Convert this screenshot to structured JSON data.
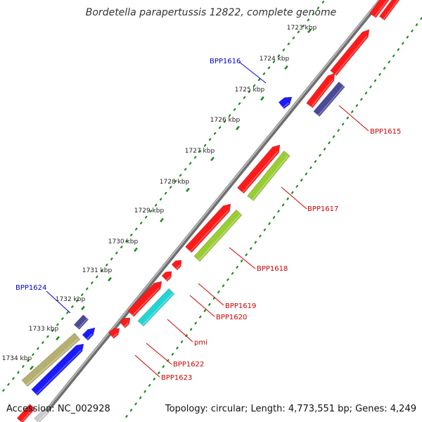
{
  "title": "Bordetella parapertussis 12822, complete genome",
  "footer": {
    "accession": "Accession: NC_002928",
    "summary": "Topology: circular; Length: 4,773,551 bp; Genes: 4,249"
  },
  "colors": {
    "background": "#ffffff",
    "backbone": "#8a8a8a",
    "tick": "#1a8c1a",
    "forward_label": "#0000cc",
    "reverse_label": "#cc0000",
    "gene_red": "#ff1a1a",
    "gene_blue": "#1a1aff",
    "gene_navy": "#4a4a9a",
    "gene_olive": "#b5b070",
    "gene_lime": "#9acd32",
    "gene_cyan": "#22d4d4"
  },
  "scale_labels": [
    "1723 kbp",
    "1724 kbp",
    "1725 kbp",
    "1726 kbp",
    "1727 kbp",
    "1728 kbp",
    "1729 kbp",
    "1730 kbp",
    "1731 kbp",
    "1732 kbp",
    "1733 kbp",
    "1734 kbp"
  ],
  "gene_labels": {
    "forward": [
      "BPP1616",
      "BPP1624"
    ],
    "reverse": [
      "BPP1615",
      "BPP1617",
      "BPP1618",
      "BPP1619",
      "BPP1620",
      "pmi",
      "BPP1622",
      "BPP1623"
    ]
  }
}
